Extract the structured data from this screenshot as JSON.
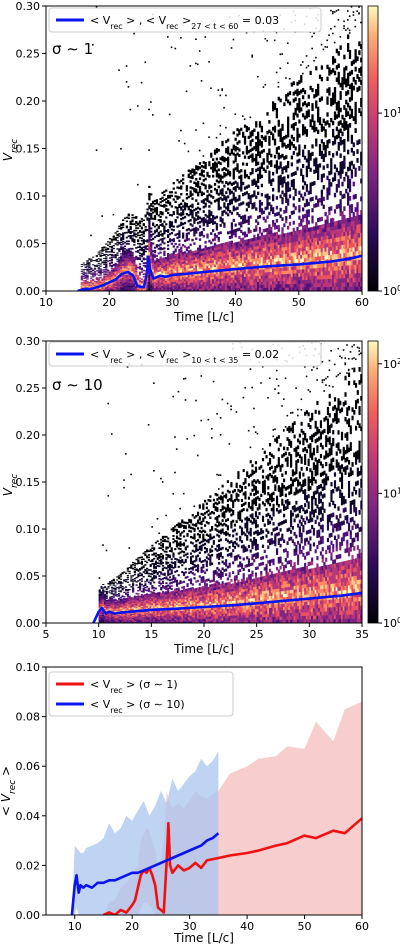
{
  "colors": {
    "line_blue": "#0a14ee",
    "line_red": "#ee1111",
    "band_blue": "#a9c4ef",
    "band_red": "#f6bcbc",
    "cmap_low": "#000004",
    "cmap_mid": "#7a2381",
    "cmap_orange": "#f1605d",
    "cmap_high": "#fcfdbf"
  },
  "chart_data": [
    {
      "type": "heatmap",
      "xlabel": "Time [L/c]",
      "ylabel": "V_rec",
      "xlim": [
        10,
        60
      ],
      "ylim": [
        0,
        0.3
      ],
      "xticks": [
        "10",
        "20",
        "30",
        "40",
        "50",
        "60"
      ],
      "yticks": [
        "0.00",
        "0.05",
        "0.10",
        "0.15",
        "0.20",
        "0.25",
        "0.30"
      ],
      "annotation": "σ ∼ 1",
      "legend": {
        "position": "top-left",
        "entries": [
          {
            "color_key": "line_blue",
            "part1": "< V",
            "sub1": "rec",
            "part2": " > , < V",
            "sub2": "rec",
            "part3": " >",
            "sub3": "27 < t < 60",
            "part4": " = 0.03"
          }
        ]
      },
      "colorbar": {
        "scale": "log",
        "range": [
          1,
          40
        ],
        "ticks": [
          {
            "base": "10",
            "exp": "0",
            "value": 1
          },
          {
            "base": "10",
            "exp": "1",
            "value": 10
          }
        ]
      },
      "mean_line": {
        "x": [
          15,
          16,
          17,
          18,
          19,
          20,
          21,
          22,
          23,
          23.8,
          24.5,
          25.5,
          26,
          26.2,
          26.5,
          27,
          28,
          29,
          30,
          32,
          35,
          40,
          45,
          50,
          55,
          58,
          60
        ],
        "y": [
          0.0,
          0.002,
          0.002,
          0.004,
          0.006,
          0.009,
          0.012,
          0.018,
          0.02,
          0.016,
          0.005,
          0.004,
          0.02,
          0.036,
          0.022,
          0.013,
          0.016,
          0.015,
          0.017,
          0.018,
          0.02,
          0.023,
          0.026,
          0.028,
          0.031,
          0.034,
          0.037
        ]
      }
    },
    {
      "type": "heatmap",
      "xlabel": "Time [L/c]",
      "ylabel": "V_rec",
      "xlim": [
        5,
        35
      ],
      "ylim": [
        0,
        0.3
      ],
      "xticks": [
        "5",
        "10",
        "15",
        "20",
        "25",
        "30",
        "35"
      ],
      "yticks": [
        "0.00",
        "0.05",
        "0.10",
        "0.15",
        "0.20",
        "0.25",
        "0.30"
      ],
      "annotation": "σ ∼ 10",
      "legend": {
        "position": "top-left",
        "entries": [
          {
            "color_key": "line_blue",
            "part1": "< V",
            "sub1": "rec",
            "part2": " > , < V",
            "sub2": "rec",
            "part3": " >",
            "sub3": "10 < t < 35",
            "part4": " = 0.02"
          }
        ]
      },
      "colorbar": {
        "scale": "log",
        "range": [
          1,
          150
        ],
        "ticks": [
          {
            "base": "10",
            "exp": "0",
            "value": 1
          },
          {
            "base": "10",
            "exp": "1",
            "value": 10
          },
          {
            "base": "10",
            "exp": "2",
            "value": 100
          }
        ]
      },
      "mean_line": {
        "x": [
          9.5,
          10,
          10.3,
          10.7,
          11,
          11.5,
          12,
          13,
          14,
          15,
          17,
          20,
          23,
          25,
          28,
          30,
          33,
          35
        ],
        "y": [
          0.0,
          0.012,
          0.016,
          0.01,
          0.012,
          0.01,
          0.011,
          0.012,
          0.013,
          0.014,
          0.015,
          0.017,
          0.019,
          0.021,
          0.024,
          0.026,
          0.029,
          0.032
        ]
      }
    },
    {
      "type": "line",
      "xlabel": "Time [L/c]",
      "ylabel": "< V_rec >",
      "xlim": [
        5,
        60
      ],
      "ylim": [
        0,
        0.1
      ],
      "xticks": [
        "10",
        "20",
        "30",
        "40",
        "50",
        "60"
      ],
      "yticks": [
        "0.00",
        "0.02",
        "0.04",
        "0.06",
        "0.08",
        "0.10"
      ],
      "legend_position": "top-left",
      "series": [
        {
          "color_key": "line_red",
          "band_key": "band_red",
          "label_pre": "< V",
          "label_sub": "rec",
          "label_post": " > (σ ∼ 1)",
          "x": [
            15,
            16,
            17,
            18,
            19,
            20,
            20.5,
            21,
            21.5,
            22,
            22.5,
            23,
            23.5,
            24,
            24.5,
            25,
            25.5,
            26,
            26.3,
            26.6,
            27,
            28,
            29,
            30,
            31,
            32,
            33,
            35,
            37,
            40,
            42,
            45,
            47,
            50,
            52,
            55,
            57,
            60
          ],
          "y": [
            0.0,
            0.001,
            0.0,
            0.002,
            0.001,
            0.004,
            0.006,
            0.011,
            0.016,
            0.018,
            0.017,
            0.019,
            0.016,
            0.012,
            0.003,
            0.002,
            0.001,
            0.022,
            0.037,
            0.02,
            0.017,
            0.02,
            0.018,
            0.019,
            0.021,
            0.019,
            0.022,
            0.023,
            0.024,
            0.025,
            0.026,
            0.028,
            0.029,
            0.032,
            0.031,
            0.034,
            0.033,
            0.039
          ],
          "upper": [
            0.0,
            0.005,
            0.006,
            0.011,
            0.013,
            0.016,
            0.018,
            0.02,
            0.03,
            0.033,
            0.035,
            0.034,
            0.03,
            0.026,
            0.02,
            0.022,
            0.03,
            0.05,
            0.047,
            0.045,
            0.043,
            0.045,
            0.043,
            0.046,
            0.05,
            0.048,
            0.047,
            0.05,
            0.057,
            0.06,
            0.063,
            0.064,
            0.068,
            0.067,
            0.078,
            0.07,
            0.083,
            0.086
          ],
          "lower": [
            0.0,
            0.0,
            0.0,
            0.0,
            0.0,
            0.0,
            0.0,
            0.0,
            0.003,
            0.005,
            0.005,
            0.004,
            0.003,
            0.0,
            0.0,
            0.0,
            0.0,
            0.0,
            0.0,
            0.0,
            0.0,
            0.0,
            0.0,
            0.0,
            0.0,
            0.0,
            0.0,
            0.0,
            0.0,
            0.0,
            0.0,
            0.0,
            0.0,
            0.0,
            0.0,
            0.0,
            0.0,
            0.0
          ]
        },
        {
          "color_key": "line_blue",
          "band_key": "band_blue",
          "label_pre": "< V",
          "label_sub": "rec",
          "label_post": " > (σ ∼ 10)",
          "x": [
            9.5,
            10,
            10.3,
            10.7,
            11,
            11.5,
            12,
            13,
            14,
            15,
            16,
            17,
            18,
            19,
            20,
            21,
            22,
            23,
            24,
            25,
            26,
            27,
            28,
            29,
            30,
            31,
            32,
            33,
            34,
            35
          ],
          "y": [
            0.0,
            0.012,
            0.016,
            0.009,
            0.012,
            0.011,
            0.012,
            0.011,
            0.013,
            0.013,
            0.014,
            0.014,
            0.015,
            0.016,
            0.017,
            0.017,
            0.018,
            0.019,
            0.02,
            0.021,
            0.022,
            0.023,
            0.024,
            0.025,
            0.026,
            0.027,
            0.028,
            0.03,
            0.031,
            0.033
          ],
          "upper": [
            0.0,
            0.028,
            0.027,
            0.026,
            0.025,
            0.025,
            0.027,
            0.028,
            0.029,
            0.031,
            0.037,
            0.033,
            0.035,
            0.04,
            0.038,
            0.042,
            0.046,
            0.04,
            0.044,
            0.05,
            0.045,
            0.055,
            0.05,
            0.053,
            0.056,
            0.058,
            0.063,
            0.06,
            0.062,
            0.066
          ],
          "lower": [
            0.0,
            0.0,
            0.003,
            0.0,
            0.0,
            0.0,
            0.0,
            0.0,
            0.0,
            0.0,
            0.0,
            0.0,
            0.0,
            0.0,
            0.0,
            0.0,
            0.0,
            0.0,
            0.0,
            0.0,
            0.0,
            0.0,
            0.0,
            0.0,
            0.0,
            0.0,
            0.0,
            0.0,
            0.0,
            0.0
          ]
        }
      ]
    }
  ]
}
